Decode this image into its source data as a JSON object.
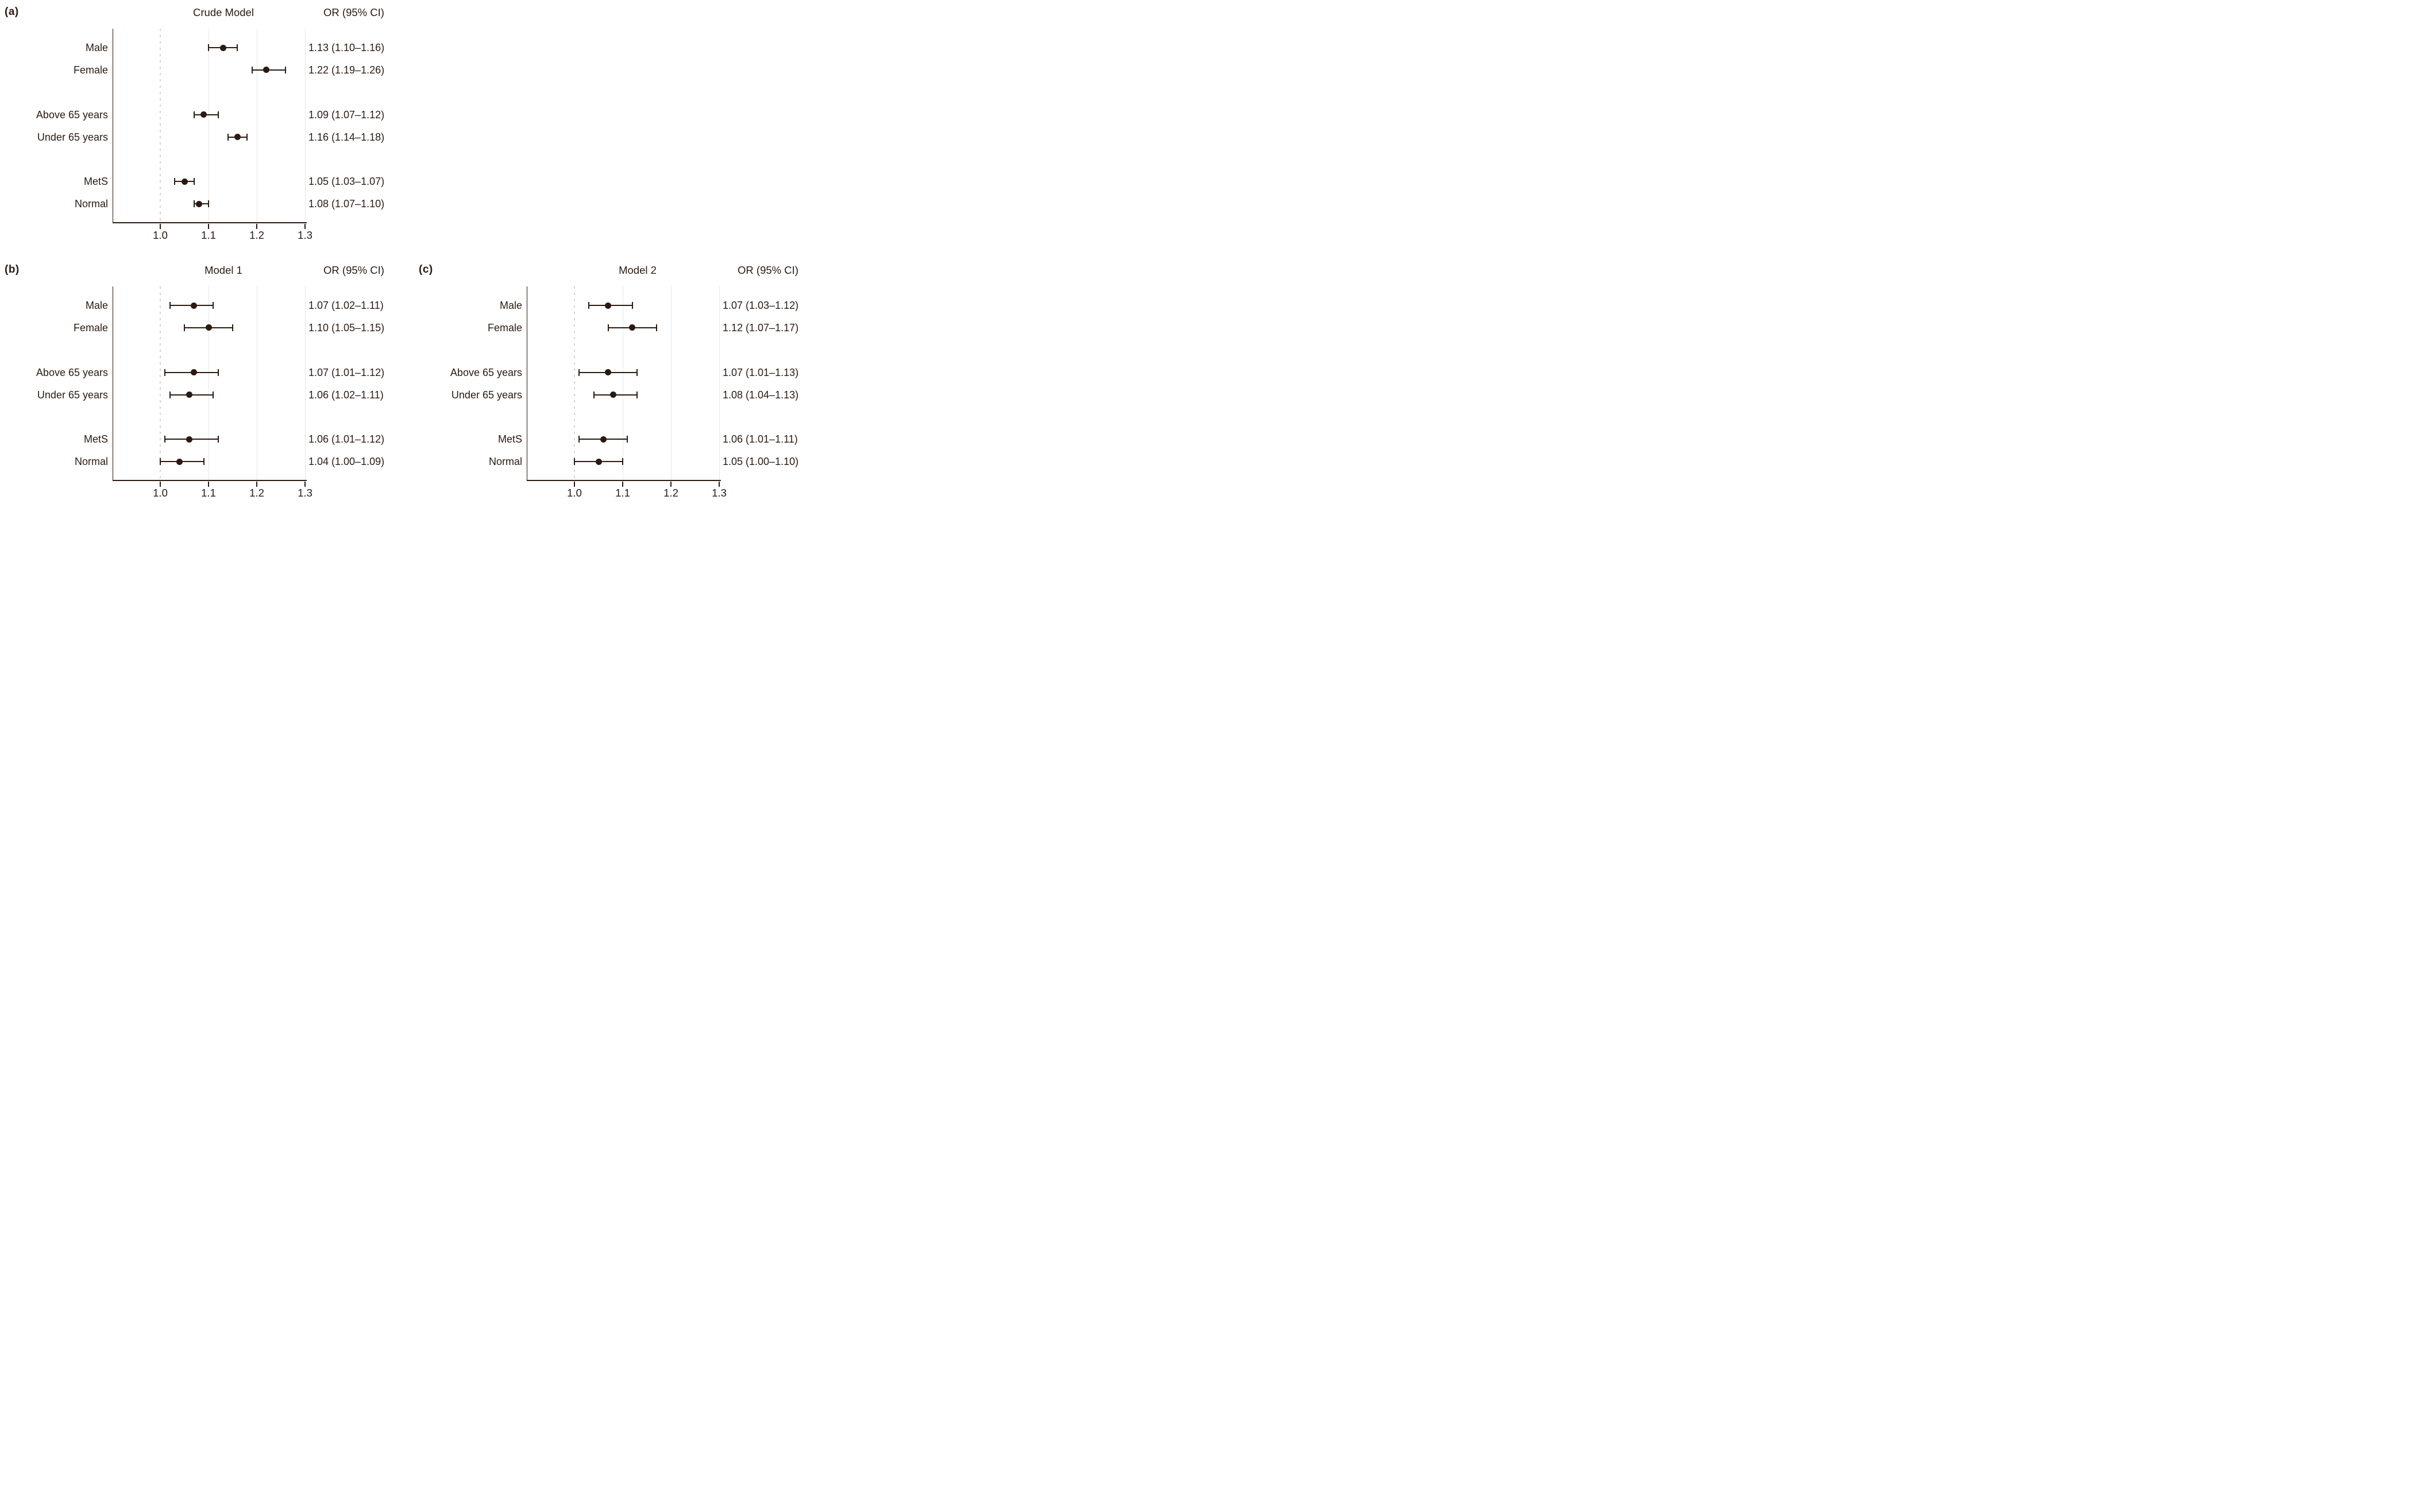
{
  "figure": {
    "background": "#ffffff",
    "ink_color": "#2a1a12",
    "grid_color": "#e7e7e7",
    "reference_line_color": "#d4d4d4"
  },
  "axis": {
    "tick_labels": [
      "1.0",
      "1.1",
      "1.2",
      "1.3"
    ],
    "tick_values": [
      1.0,
      1.1,
      1.2,
      1.3
    ],
    "gridline_values": [
      1.1,
      1.2,
      1.3
    ],
    "reference_value": 1.0,
    "xlim": [
      0.902,
      1.304
    ]
  },
  "chart_data": [
    {
      "type": "scatter",
      "variant": "forest-plot",
      "panel_label": "(a)",
      "title": "Crude Model",
      "or_header": "OR (95% CI)",
      "xlabel": "",
      "xlim": [
        0.902,
        1.304
      ],
      "x_ticks": [
        "1.0",
        "1.1",
        "1.2",
        "1.3"
      ],
      "reference_line": 1.0,
      "grid": "light-vertical",
      "legend": "none",
      "rows": [
        {
          "label": "Male",
          "or": 1.13,
          "ci_low": 1.1,
          "ci_high": 1.16,
          "or_text": "1.13 (1.10–1.16)"
        },
        {
          "label": "Female",
          "or": 1.22,
          "ci_low": 1.19,
          "ci_high": 1.26,
          "or_text": "1.22 (1.19–1.26)"
        },
        {
          "label": "Above 65 years",
          "or": 1.09,
          "ci_low": 1.07,
          "ci_high": 1.12,
          "or_text": "1.09 (1.07–1.12)"
        },
        {
          "label": "Under 65 years",
          "or": 1.16,
          "ci_low": 1.14,
          "ci_high": 1.18,
          "or_text": "1.16 (1.14–1.18)"
        },
        {
          "label": "MetS",
          "or": 1.05,
          "ci_low": 1.03,
          "ci_high": 1.07,
          "or_text": "1.05 (1.03–1.07)"
        },
        {
          "label": "Normal",
          "or": 1.08,
          "ci_low": 1.07,
          "ci_high": 1.1,
          "or_text": "1.08 (1.07–1.10)"
        }
      ]
    },
    {
      "type": "scatter",
      "variant": "forest-plot",
      "panel_label": "(b)",
      "title": "Model 1",
      "or_header": "OR (95% CI)",
      "xlabel": "",
      "xlim": [
        0.902,
        1.304
      ],
      "x_ticks": [
        "1.0",
        "1.1",
        "1.2",
        "1.3"
      ],
      "reference_line": 1.0,
      "grid": "light-vertical",
      "legend": "none",
      "rows": [
        {
          "label": "Male",
          "or": 1.07,
          "ci_low": 1.02,
          "ci_high": 1.11,
          "or_text": "1.07 (1.02–1.11)"
        },
        {
          "label": "Female",
          "or": 1.1,
          "ci_low": 1.05,
          "ci_high": 1.15,
          "or_text": "1.10 (1.05–1.15)"
        },
        {
          "label": "Above 65 years",
          "or": 1.07,
          "ci_low": 1.01,
          "ci_high": 1.12,
          "or_text": "1.07 (1.01–1.12)"
        },
        {
          "label": "Under 65 years",
          "or": 1.06,
          "ci_low": 1.02,
          "ci_high": 1.11,
          "or_text": "1.06 (1.02–1.11)"
        },
        {
          "label": "MetS",
          "or": 1.06,
          "ci_low": 1.01,
          "ci_high": 1.12,
          "or_text": "1.06 (1.01–1.12)"
        },
        {
          "label": "Normal",
          "or": 1.04,
          "ci_low": 1.0,
          "ci_high": 1.09,
          "or_text": "1.04 (1.00–1.09)"
        }
      ]
    },
    {
      "type": "scatter",
      "variant": "forest-plot",
      "panel_label": "(c)",
      "title": "Model 2",
      "or_header": "OR (95% CI)",
      "xlabel": "",
      "xlim": [
        0.902,
        1.304
      ],
      "x_ticks": [
        "1.0",
        "1.1",
        "1.2",
        "1.3"
      ],
      "reference_line": 1.0,
      "grid": "light-vertical",
      "legend": "none",
      "rows": [
        {
          "label": "Male",
          "or": 1.07,
          "ci_low": 1.03,
          "ci_high": 1.12,
          "or_text": "1.07 (1.03–1.12)"
        },
        {
          "label": "Female",
          "or": 1.12,
          "ci_low": 1.07,
          "ci_high": 1.17,
          "or_text": "1.12 (1.07–1.17)"
        },
        {
          "label": "Above 65 years",
          "or": 1.07,
          "ci_low": 1.01,
          "ci_high": 1.13,
          "or_text": "1.07 (1.01–1.13)"
        },
        {
          "label": "Under 65 years",
          "or": 1.08,
          "ci_low": 1.04,
          "ci_high": 1.13,
          "or_text": "1.08 (1.04–1.13)"
        },
        {
          "label": "MetS",
          "or": 1.06,
          "ci_low": 1.01,
          "ci_high": 1.11,
          "or_text": "1.06 (1.01–1.11)"
        },
        {
          "label": "Normal",
          "or": 1.05,
          "ci_low": 1.0,
          "ci_high": 1.1,
          "or_text": "1.05 (1.00–1.10)"
        }
      ]
    }
  ]
}
